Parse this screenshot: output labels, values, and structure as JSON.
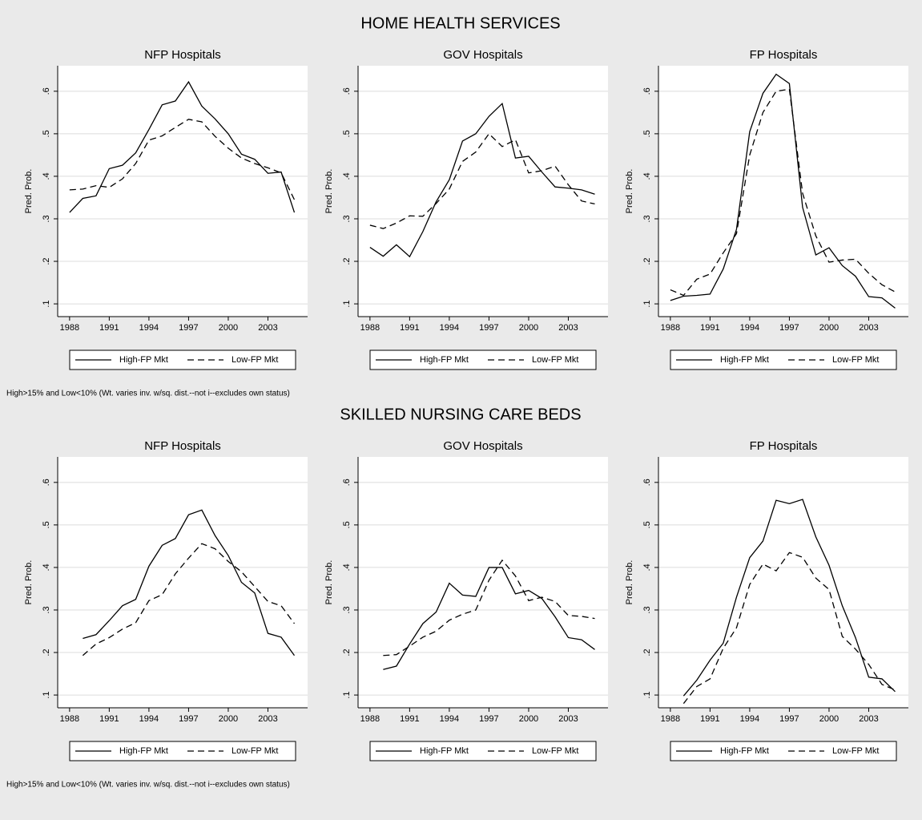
{
  "sections": [
    {
      "title": "HOME HEALTH SERVICES",
      "note": "High>15% and Low<10% (Wt. varies inv. w/sq. dist.--not i--excludes own status)"
    },
    {
      "title": "SKILLED NURSING CARE BEDS",
      "note": "High>15% and Low<10% (Wt. varies inv. w/sq. dist.--not i--excludes own status)"
    }
  ],
  "chart_data": [
    {
      "type": "line",
      "title": "NFP Hospitals",
      "y_label": "Pred. Prob.",
      "x": [
        1988,
        1989,
        1990,
        1991,
        1992,
        1993,
        1994,
        1995,
        1996,
        1997,
        1998,
        1999,
        2000,
        2001,
        2002,
        2003,
        2004,
        2005
      ],
      "xlim": [
        1987.1,
        2006
      ],
      "xticks": [
        1988,
        1991,
        1994,
        1997,
        2000,
        2003
      ],
      "ylim": [
        0.07,
        0.66
      ],
      "yticks": [
        {
          "value": 0.1,
          "label": ".1"
        },
        {
          "value": 0.2,
          "label": ".2"
        },
        {
          "value": 0.3,
          "label": ".3"
        },
        {
          "value": 0.4,
          "label": ".4"
        },
        {
          "value": 0.5,
          "label": ".5"
        },
        {
          "value": 0.6,
          "label": ".6"
        }
      ],
      "grid": true,
      "series": [
        {
          "name": "High-FP Mkt",
          "color": "#000000",
          "line_style": "solid",
          "values": [
            0.315,
            0.348,
            0.354,
            0.418,
            0.426,
            0.455,
            0.51,
            0.568,
            0.577,
            0.622,
            0.565,
            0.535,
            0.5,
            0.452,
            0.44,
            0.407,
            0.41,
            0.315
          ]
        },
        {
          "name": "Low-FP Mkt",
          "color": "#000000",
          "line_style": "dashed",
          "values": [
            0.368,
            0.37,
            0.378,
            0.374,
            0.394,
            0.43,
            0.485,
            0.495,
            0.515,
            0.534,
            0.528,
            0.494,
            0.466,
            0.443,
            0.43,
            0.42,
            0.408,
            0.345
          ]
        }
      ]
    },
    {
      "type": "line",
      "title": "GOV Hospitals",
      "y_label": "Pred. Prob.",
      "x": [
        1988,
        1989,
        1990,
        1991,
        1992,
        1993,
        1994,
        1995,
        1996,
        1997,
        1998,
        1999,
        2000,
        2001,
        2002,
        2003,
        2004,
        2005
      ],
      "xlim": [
        1987.1,
        2006
      ],
      "xticks": [
        1988,
        1991,
        1994,
        1997,
        2000,
        2003
      ],
      "ylim": [
        0.07,
        0.66
      ],
      "yticks": [
        {
          "value": 0.1,
          "label": ".1"
        },
        {
          "value": 0.2,
          "label": ".2"
        },
        {
          "value": 0.3,
          "label": ".3"
        },
        {
          "value": 0.4,
          "label": ".4"
        },
        {
          "value": 0.5,
          "label": ".5"
        },
        {
          "value": 0.6,
          "label": ".6"
        }
      ],
      "grid": true,
      "series": [
        {
          "name": "High-FP Mkt",
          "color": "#000000",
          "line_style": "solid",
          "values": [
            0.233,
            0.212,
            0.239,
            0.211,
            0.27,
            0.34,
            0.392,
            0.483,
            0.5,
            0.541,
            0.571,
            0.443,
            0.447,
            0.41,
            0.375,
            0.372,
            0.368,
            0.358
          ]
        },
        {
          "name": "Low-FP Mkt",
          "color": "#000000",
          "line_style": "dashed",
          "values": [
            0.285,
            0.277,
            0.29,
            0.307,
            0.306,
            0.336,
            0.37,
            0.435,
            0.457,
            0.5,
            0.47,
            0.486,
            0.408,
            0.413,
            0.424,
            0.38,
            0.342,
            0.335
          ]
        }
      ]
    },
    {
      "type": "line",
      "title": "FP Hospitals",
      "y_label": "Pred. Prob.",
      "x": [
        1988,
        1989,
        1990,
        1991,
        1992,
        1993,
        1994,
        1995,
        1996,
        1997,
        1998,
        1999,
        2000,
        2001,
        2002,
        2003,
        2004,
        2005
      ],
      "xlim": [
        1987.1,
        2006
      ],
      "xticks": [
        1988,
        1991,
        1994,
        1997,
        2000,
        2003
      ],
      "ylim": [
        0.07,
        0.66
      ],
      "yticks": [
        {
          "value": 0.1,
          "label": ".1"
        },
        {
          "value": 0.2,
          "label": ".2"
        },
        {
          "value": 0.3,
          "label": ".3"
        },
        {
          "value": 0.4,
          "label": ".4"
        },
        {
          "value": 0.5,
          "label": ".5"
        },
        {
          "value": 0.6,
          "label": ".6"
        }
      ],
      "grid": true,
      "series": [
        {
          "name": "High-FP Mkt",
          "color": "#000000",
          "line_style": "solid",
          "values": [
            0.108,
            0.118,
            0.12,
            0.123,
            0.182,
            0.275,
            0.505,
            0.595,
            0.64,
            0.618,
            0.327,
            0.215,
            0.232,
            0.19,
            0.165,
            0.117,
            0.114,
            0.09
          ]
        },
        {
          "name": "Low-FP Mkt",
          "color": "#000000",
          "line_style": "dashed",
          "values": [
            0.133,
            0.12,
            0.158,
            0.17,
            0.22,
            0.265,
            0.45,
            0.55,
            0.6,
            0.605,
            0.36,
            0.26,
            0.198,
            0.203,
            0.205,
            0.172,
            0.145,
            0.128
          ]
        }
      ]
    },
    {
      "type": "line",
      "title": "NFP Hospitals",
      "y_label": "Pred. Prob.",
      "x": [
        1989,
        1990,
        1991,
        1992,
        1993,
        1994,
        1995,
        1996,
        1997,
        1998,
        1999,
        2000,
        2001,
        2002,
        2003,
        2004,
        2005
      ],
      "xlim": [
        1987.1,
        2006
      ],
      "xticks": [
        1988,
        1991,
        1994,
        1997,
        2000,
        2003
      ],
      "ylim": [
        0.07,
        0.66
      ],
      "yticks": [
        {
          "value": 0.1,
          "label": ".1"
        },
        {
          "value": 0.2,
          "label": ".2"
        },
        {
          "value": 0.3,
          "label": ".3"
        },
        {
          "value": 0.4,
          "label": ".4"
        },
        {
          "value": 0.5,
          "label": ".5"
        },
        {
          "value": 0.6,
          "label": ".6"
        }
      ],
      "grid": true,
      "series": [
        {
          "name": "High-FP Mkt",
          "color": "#000000",
          "line_style": "solid",
          "values": [
            0.233,
            0.242,
            0.275,
            0.31,
            0.325,
            0.403,
            0.452,
            0.468,
            0.524,
            0.535,
            0.475,
            0.428,
            0.365,
            0.34,
            0.245,
            0.236,
            0.193
          ]
        },
        {
          "name": "Low-FP Mkt",
          "color": "#000000",
          "line_style": "dashed",
          "values": [
            0.193,
            0.22,
            0.235,
            0.255,
            0.27,
            0.322,
            0.336,
            0.385,
            0.422,
            0.456,
            0.444,
            0.414,
            0.39,
            0.355,
            0.32,
            0.31,
            0.268
          ]
        }
      ]
    },
    {
      "type": "line",
      "title": "GOV Hospitals",
      "y_label": "Pred. Prob.",
      "x": [
        1989,
        1990,
        1991,
        1992,
        1993,
        1994,
        1995,
        1996,
        1997,
        1998,
        1999,
        2000,
        2001,
        2002,
        2003,
        2004,
        2005
      ],
      "xlim": [
        1987.1,
        2006
      ],
      "xticks": [
        1988,
        1991,
        1994,
        1997,
        2000,
        2003
      ],
      "ylim": [
        0.07,
        0.66
      ],
      "yticks": [
        {
          "value": 0.1,
          "label": ".1"
        },
        {
          "value": 0.2,
          "label": ".2"
        },
        {
          "value": 0.3,
          "label": ".3"
        },
        {
          "value": 0.4,
          "label": ".4"
        },
        {
          "value": 0.5,
          "label": ".5"
        },
        {
          "value": 0.6,
          "label": ".6"
        }
      ],
      "grid": true,
      "series": [
        {
          "name": "High-FP Mkt",
          "color": "#000000",
          "line_style": "solid",
          "values": [
            0.16,
            0.168,
            0.22,
            0.268,
            0.295,
            0.363,
            0.335,
            0.332,
            0.4,
            0.4,
            0.338,
            0.346,
            0.327,
            0.284,
            0.235,
            0.23,
            0.207
          ]
        },
        {
          "name": "Low-FP Mkt",
          "color": "#000000",
          "line_style": "dashed",
          "values": [
            0.193,
            0.195,
            0.215,
            0.236,
            0.25,
            0.276,
            0.29,
            0.3,
            0.37,
            0.417,
            0.38,
            0.322,
            0.33,
            0.32,
            0.287,
            0.285,
            0.28
          ]
        }
      ]
    },
    {
      "type": "line",
      "title": "FP Hospitals",
      "y_label": "Pred. Prob.",
      "x": [
        1989,
        1990,
        1991,
        1992,
        1993,
        1994,
        1995,
        1996,
        1997,
        1998,
        1999,
        2000,
        2001,
        2002,
        2003,
        2004,
        2005
      ],
      "xlim": [
        1987.1,
        2006
      ],
      "xticks": [
        1988,
        1991,
        1994,
        1997,
        2000,
        2003
      ],
      "ylim": [
        0.07,
        0.66
      ],
      "yticks": [
        {
          "value": 0.1,
          "label": ".1"
        },
        {
          "value": 0.2,
          "label": ".2"
        },
        {
          "value": 0.3,
          "label": ".3"
        },
        {
          "value": 0.4,
          "label": ".4"
        },
        {
          "value": 0.5,
          "label": ".5"
        },
        {
          "value": 0.6,
          "label": ".6"
        }
      ],
      "grid": true,
      "series": [
        {
          "name": "High-FP Mkt",
          "color": "#000000",
          "line_style": "solid",
          "values": [
            0.098,
            0.135,
            0.182,
            0.222,
            0.33,
            0.423,
            0.462,
            0.558,
            0.55,
            0.56,
            0.472,
            0.405,
            0.31,
            0.235,
            0.142,
            0.138,
            0.108
          ]
        },
        {
          "name": "Low-FP Mkt",
          "color": "#000000",
          "line_style": "dashed",
          "values": [
            0.08,
            0.12,
            0.138,
            0.21,
            0.258,
            0.36,
            0.408,
            0.392,
            0.435,
            0.424,
            0.375,
            0.348,
            0.238,
            0.208,
            0.172,
            0.125,
            0.112
          ]
        }
      ]
    }
  ]
}
